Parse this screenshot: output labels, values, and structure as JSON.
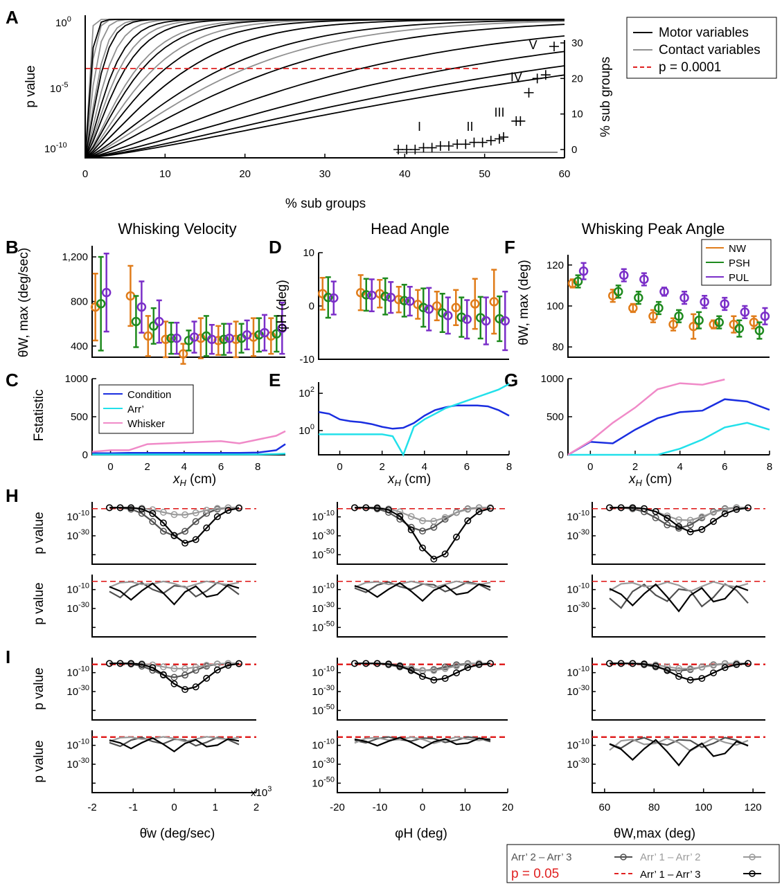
{
  "figure": {
    "panel_letters": [
      "A",
      "B",
      "C",
      "D",
      "E",
      "F",
      "G",
      "H",
      "I"
    ],
    "column_titles": [
      "Whisking Velocity",
      "Head Angle",
      "Whisking Peak Angle"
    ],
    "bottom_legend": {
      "entries": [
        {
          "label": "Arr’ 2 – Arr’ 3",
          "color": "#505050",
          "marker": "circle"
        },
        {
          "label": "Arr’ 1 – Arr’ 2",
          "color": "#9a9a9a",
          "marker": "circle"
        },
        {
          "label": "p = 0.05",
          "color": "#e02020",
          "marker": "dash"
        },
        {
          "label": "Arr’ 1 – Arr’ 3",
          "color": "#000000",
          "marker": "circle"
        }
      ]
    }
  },
  "chart_data": [
    {
      "id": "A",
      "type": "line",
      "xlabel": "% sub groups",
      "ylabel": "p value",
      "y2label": "% sub groups",
      "xticks": [
        "0",
        "10",
        "20",
        "30",
        "40",
        "50",
        "60"
      ],
      "yticks": [
        "10^0",
        "10^-5",
        "10^-10"
      ],
      "y2ticks": [
        "0",
        "10",
        "20",
        "30"
      ],
      "xlim": [
        0,
        60
      ],
      "ylim": [
        -10,
        0
      ],
      "yscale": "log",
      "threshold": {
        "label": "p = 0.0001",
        "value": -4,
        "color": "#e02020"
      },
      "legend": {
        "position": "top-right",
        "entries": [
          {
            "label": "Motor variables",
            "color": "#000000"
          },
          {
            "label": "Contact variables",
            "color": "#909090"
          },
          {
            "label": "p = 0.0001",
            "color": "#e02020"
          }
        ]
      },
      "motor_curves_n50": [
        0.5,
        1.5,
        2.5,
        3.5,
        5,
        7,
        9,
        12,
        17,
        24,
        32,
        40,
        46
      ],
      "contact_curves_n50": [
        0.3,
        0.6,
        0.9,
        1.3,
        2,
        3,
        4.5,
        6,
        9,
        14
      ],
      "inset": {
        "points": [
          [
            39.5,
            0
          ],
          [
            40.5,
            0
          ],
          [
            41.5,
            0
          ],
          [
            42.5,
            0.5
          ],
          [
            43.5,
            0.5
          ],
          [
            44.5,
            1
          ],
          [
            45.5,
            1
          ],
          [
            46.5,
            1.5
          ],
          [
            47.5,
            1.5
          ],
          [
            48.5,
            2
          ],
          [
            49.5,
            2
          ],
          [
            50.5,
            2.5
          ],
          [
            51.5,
            3
          ],
          [
            52,
            3.5
          ],
          [
            53.5,
            8
          ],
          [
            54,
            8
          ],
          [
            55,
            16
          ],
          [
            56,
            20
          ],
          [
            57,
            21
          ],
          [
            58,
            29
          ]
        ],
        "labels": [
          {
            "text": "I",
            "x": 42.5,
            "y": 6
          },
          {
            "text": "II",
            "x": 48.5,
            "y": 6
          },
          {
            "text": "III",
            "x": 52,
            "y": 10
          },
          {
            "text": "IV",
            "x": 54,
            "y": 20
          },
          {
            "text": "V",
            "x": 56,
            "y": 29
          }
        ]
      }
    },
    {
      "id": "B",
      "type": "scatter",
      "title": "Whisking Velocity",
      "ylabel": "θ̇W, max (deg/sec)",
      "yticks": [
        "1,200",
        "800",
        "400"
      ],
      "ylim": [
        300,
        1300
      ],
      "x": [
        -1,
        1,
        2,
        3,
        4,
        5,
        6,
        7,
        8,
        9
      ],
      "series": [
        {
          "name": "NW",
          "color": "#e07c1a",
          "y": [
            750,
            850,
            490,
            460,
            330,
            470,
            450,
            460,
            480,
            490
          ],
          "err": [
            300,
            270,
            180,
            160,
            90,
            180,
            130,
            160,
            170,
            160
          ]
        },
        {
          "name": "PSH",
          "color": "#1e8a1e",
          "y": [
            780,
            620,
            580,
            470,
            450,
            490,
            460,
            470,
            500,
            510
          ],
          "err": [
            420,
            230,
            160,
            140,
            90,
            180,
            140,
            130,
            150,
            160
          ]
        },
        {
          "name": "PUL",
          "color": "#7a2ec8",
          "y": [
            880,
            750,
            620,
            470,
            480,
            460,
            470,
            500,
            520,
            560
          ],
          "err": [
            350,
            230,
            190,
            140,
            140,
            130,
            130,
            130,
            160,
            230
          ]
        }
      ]
    },
    {
      "id": "D",
      "type": "scatter",
      "title": "Head Angle",
      "ylabel": "φH (deg)",
      "yticks": [
        "10",
        "0",
        "-10"
      ],
      "ylim": [
        -10,
        10
      ],
      "x": [
        -1,
        1,
        2,
        3,
        4,
        5,
        6,
        7,
        8
      ],
      "series": [
        {
          "name": "NW",
          "color": "#e07c1a",
          "y": [
            2.3,
            2.5,
            2.3,
            1.2,
            0.3,
            0.0,
            -0.3,
            0.4,
            0.8
          ],
          "err": [
            3,
            3.3,
            2.6,
            2.4,
            2.7,
            2.7,
            3.3,
            4.7,
            6
          ]
        },
        {
          "name": "PSH",
          "color": "#1e8a1e",
          "y": [
            1.6,
            2.1,
            1.8,
            1.0,
            -0.3,
            -1.3,
            -2.1,
            -2.2,
            -2.4
          ],
          "err": [
            3.8,
            3,
            3.4,
            3,
            3.6,
            3.6,
            3.7,
            3.9,
            4.2
          ]
        },
        {
          "name": "PUL",
          "color": "#7a2ec8",
          "y": [
            1.5,
            2.0,
            1.6,
            0.9,
            -0.6,
            -1.8,
            -2.5,
            -2.8,
            -2.8
          ],
          "err": [
            3.1,
            3,
            2.9,
            2.7,
            4,
            3.4,
            3.6,
            4.4,
            5.5
          ]
        }
      ]
    },
    {
      "id": "F",
      "type": "scatter",
      "title": "Whisking Peak Angle",
      "ylabel": "θW, max (deg)",
      "yticks": [
        "120",
        "100",
        "80"
      ],
      "ylim": [
        75,
        125
      ],
      "x": [
        -1,
        1,
        2,
        3,
        4,
        5,
        6,
        7,
        8
      ],
      "legend": {
        "position": "top-right",
        "entries": [
          "NW",
          "PSH",
          "PUL"
        ]
      },
      "series": [
        {
          "name": "NW",
          "color": "#e07c1a",
          "y": [
            111,
            105,
            99,
            95,
            91,
            90,
            91,
            91,
            92
          ],
          "err": [
            2,
            3,
            2,
            3,
            3,
            6,
            2,
            4,
            3
          ]
        },
        {
          "name": "PSH",
          "color": "#1e8a1e",
          "y": [
            112,
            107,
            104,
            99,
            95,
            93,
            92,
            89,
            88
          ],
          "err": [
            3,
            3,
            3,
            3,
            3,
            4,
            3,
            4,
            4
          ]
        },
        {
          "name": "PUL",
          "color": "#7a2ec8",
          "y": [
            117,
            115,
            113,
            107,
            104,
            102,
            101,
            97,
            95
          ],
          "err": [
            4,
            3,
            3,
            2,
            3,
            3,
            3,
            3,
            4
          ]
        }
      ]
    },
    {
      "id": "C",
      "type": "line",
      "ylabel": "Fstatistic",
      "xlabel": "xH (cm)",
      "xticks": [
        "0",
        "2",
        "4",
        "6",
        "8"
      ],
      "yticks": [
        "1000",
        "500",
        "0"
      ],
      "xlim": [
        -1,
        9.5
      ],
      "ylim": [
        0,
        1000
      ],
      "legend": {
        "position": "top-left",
        "entries": [
          {
            "label": "Condition",
            "color": "#1a2ee0"
          },
          {
            "label": "Arr’",
            "color": "#22e0ea"
          },
          {
            "label": "Whisker",
            "color": "#f08ac8"
          }
        ]
      },
      "x": [
        -1,
        0,
        1,
        2,
        3,
        4,
        5,
        6,
        7,
        8,
        9,
        9.5
      ],
      "series": [
        {
          "name": "Condition",
          "color": "#1a2ee0",
          "y": [
            20,
            20,
            25,
            25,
            25,
            25,
            25,
            25,
            25,
            30,
            60,
            140
          ]
        },
        {
          "name": "Arr’",
          "color": "#22e0ea",
          "y": [
            5,
            5,
            5,
            5,
            5,
            5,
            5,
            5,
            5,
            5,
            10,
            15
          ]
        },
        {
          "name": "Whisker",
          "color": "#f08ac8",
          "y": [
            40,
            60,
            60,
            140,
            150,
            160,
            170,
            180,
            150,
            200,
            250,
            310
          ]
        }
      ]
    },
    {
      "id": "E",
      "type": "line",
      "xlabel": "xH (cm)",
      "yscale": "log",
      "xticks": [
        "0",
        "2",
        "4",
        "6",
        "8"
      ],
      "yticks": [
        "10^2",
        "10^0"
      ],
      "xlim": [
        -1,
        8
      ],
      "ylim": [
        -1.3,
        2.6
      ],
      "x": [
        -1,
        -0.5,
        0,
        0.5,
        1,
        1.5,
        2,
        2.5,
        3,
        3.5,
        4,
        4.5,
        5,
        5.5,
        6,
        6.5,
        7,
        7.5,
        8
      ],
      "series": [
        {
          "name": "Condition",
          "color": "#1a2ee0",
          "y": [
            1.0,
            0.9,
            0.6,
            0.5,
            0.45,
            0.35,
            0.2,
            0.1,
            0.15,
            0.4,
            0.8,
            1.1,
            1.25,
            1.35,
            1.35,
            1.35,
            1.3,
            1.1,
            0.8
          ]
        },
        {
          "name": "Arr’",
          "color": "#22e0ea",
          "y": [
            -0.2,
            -0.2,
            -0.2,
            -0.2,
            -0.2,
            -0.2,
            -0.2,
            -0.3,
            -1.3,
            0.2,
            0.6,
            0.9,
            1.2,
            1.4,
            1.6,
            1.8,
            2.0,
            2.2,
            2.5
          ]
        }
      ]
    },
    {
      "id": "G",
      "type": "line",
      "xlabel": "xH (cm)",
      "xticks": [
        "0",
        "2",
        "4",
        "6",
        "8"
      ],
      "yticks": [
        "1000",
        "500",
        "0"
      ],
      "xlim": [
        -1,
        8
      ],
      "ylim": [
        0,
        1000
      ],
      "x": [
        -1,
        0,
        1,
        2,
        3,
        4,
        5,
        6,
        7,
        8
      ],
      "series": [
        {
          "name": "Condition",
          "color": "#1a2ee0",
          "y": [
            0,
            170,
            150,
            330,
            480,
            560,
            580,
            730,
            700,
            590
          ]
        },
        {
          "name": "Arr’",
          "color": "#22e0ea",
          "y": [
            0,
            0,
            0,
            0,
            0,
            80,
            200,
            360,
            420,
            330
          ]
        },
        {
          "name": "Whisker",
          "color": "#f08ac8",
          "y": [
            0,
            180,
            420,
            620,
            860,
            940,
            920,
            990,
            null,
            null
          ]
        }
      ]
    },
    {
      "id": "H-I-pvalues",
      "type": "line",
      "yscale": "log",
      "ylabel": "p value",
      "yticks": [
        "10^-10",
        "10^-30",
        "10^-50"
      ],
      "threshold": {
        "label": "p = 0.05",
        "value": -1.3
      },
      "columns": [
        {
          "xlabel": "θ̇w (deg/sec)",
          "xticks": [
            "-2",
            "-1",
            "0",
            "1",
            "2"
          ],
          "xmultiplier": "x10^3",
          "xlim": [
            -2,
            2
          ]
        },
        {
          "xlabel": "φH (deg)",
          "xticks": [
            "-20",
            "-10",
            "0",
            "10",
            "20"
          ],
          "xlim": [
            -20,
            20
          ]
        },
        {
          "xlabel": "θW,max (deg)",
          "xticks": [
            "60",
            "80",
            "100",
            "120"
          ],
          "xlim": [
            55,
            125
          ]
        }
      ],
      "series": [
        "Arr’ 2 – Arr’ 3",
        "Arr’ 1 – Arr’ 2",
        "Arr’ 1 – Arr’ 3"
      ]
    }
  ]
}
